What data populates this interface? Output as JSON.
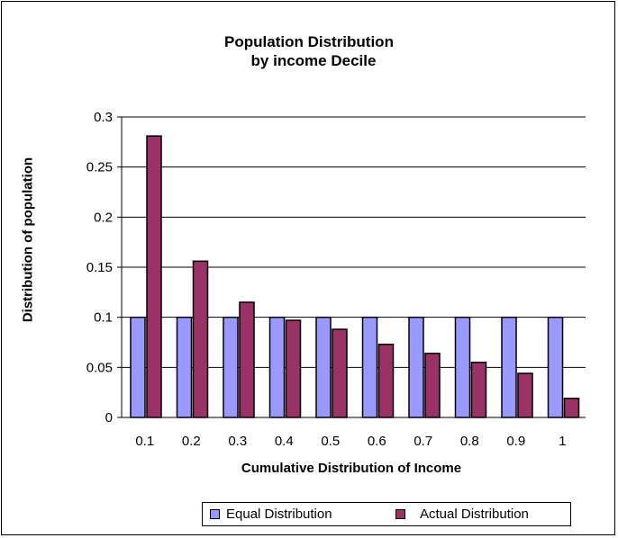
{
  "chart_data": {
    "type": "bar",
    "title": [
      "Population Distribution",
      "by income Decile"
    ],
    "xlabel": "Cumulative Distribution of Income",
    "ylabel": "Distribution of population",
    "categories": [
      "0.1",
      "0.2",
      "0.3",
      "0.4",
      "0.5",
      "0.6",
      "0.7",
      "0.8",
      "0.9",
      "1"
    ],
    "series": [
      {
        "name": "Equal Distribution",
        "color": "#9999ff",
        "values": [
          0.1,
          0.1,
          0.1,
          0.1,
          0.1,
          0.1,
          0.1,
          0.1,
          0.1,
          0.1
        ]
      },
      {
        "name": "Actual Distribution",
        "color": "#993366",
        "values": [
          0.281,
          0.156,
          0.115,
          0.097,
          0.088,
          0.073,
          0.064,
          0.055,
          0.044,
          0.019
        ]
      }
    ],
    "ylim": [
      0,
      0.3
    ],
    "yticks": [
      "0",
      "0.05",
      "0.1",
      "0.15",
      "0.2",
      "0.25",
      "0.3"
    ],
    "grid": "horizontal",
    "legend_position": "bottom"
  }
}
